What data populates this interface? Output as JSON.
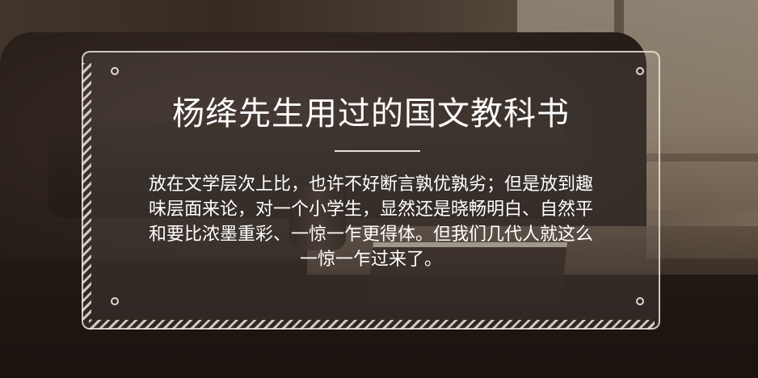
{
  "card": {
    "title": "杨绛先生用过的国文教科书",
    "body_lines": [
      "放在文学层次上比，也许不好断言孰优孰劣；但是放到趣",
      "味层面来论，对一个小学生，显然还是晓畅明白、自然平",
      "和要比浓墨重彩、一惊一乍更得体。但我们几代人就这么",
      "一惊一乍过来了。"
    ]
  },
  "colors": {
    "text": "#ffffff",
    "frame": "#ebe4dc"
  }
}
